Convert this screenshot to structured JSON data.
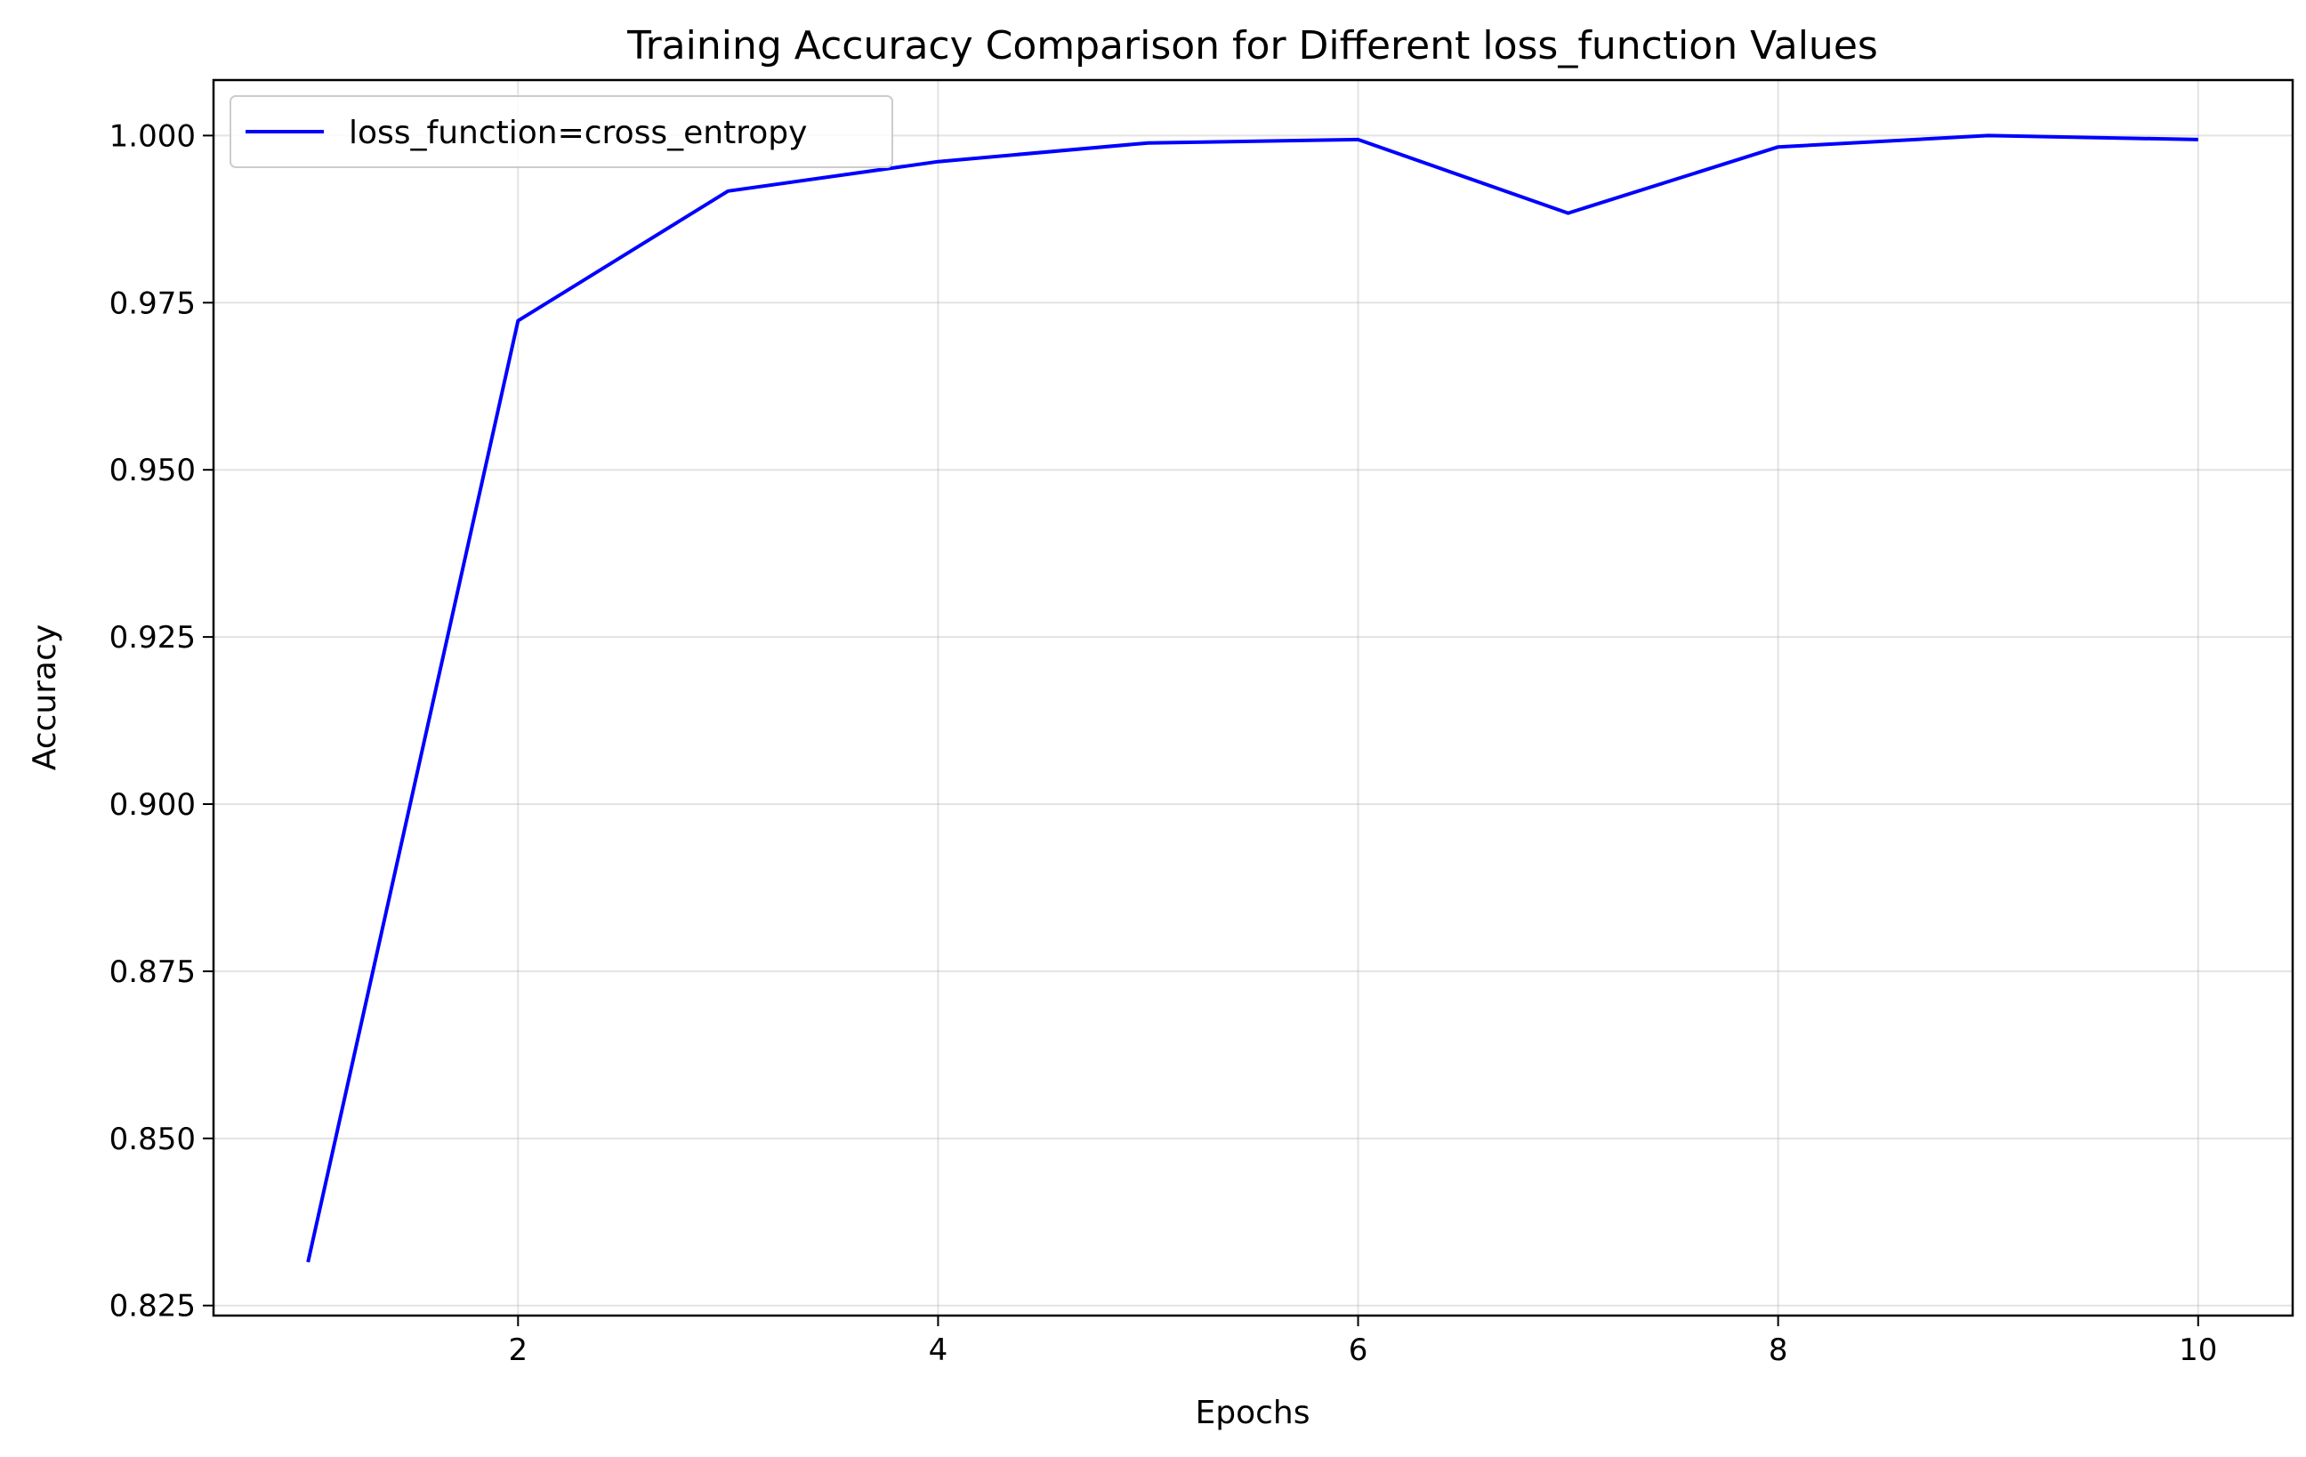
{
  "chart_data": {
    "type": "line",
    "title": "Training Accuracy Comparison for Different loss_function Values",
    "xlabel": "Epochs",
    "ylabel": "Accuracy",
    "x": [
      1,
      2,
      3,
      4,
      5,
      6,
      7,
      8,
      9,
      10
    ],
    "series": [
      {
        "name": "loss_function=cross_entropy",
        "color": "#0000ff",
        "values": [
          0.8315,
          0.9723,
          0.9917,
          0.9961,
          0.9989,
          0.9994,
          0.9884,
          0.9983,
          1.0,
          0.9994
        ]
      }
    ],
    "xlim": [
      0.55,
      10.45
    ],
    "ylim": [
      0.8235,
      1.0083
    ],
    "xticks": [
      2,
      4,
      6,
      8,
      10
    ],
    "xtick_labels": [
      "2",
      "4",
      "6",
      "8",
      "10"
    ],
    "yticks": [
      0.825,
      0.85,
      0.875,
      0.9,
      0.925,
      0.95,
      0.975,
      1.0
    ],
    "ytick_labels": [
      "0.825",
      "0.850",
      "0.875",
      "0.900",
      "0.925",
      "0.950",
      "0.975",
      "1.000"
    ],
    "grid": true,
    "legend_position": "upper-left"
  }
}
